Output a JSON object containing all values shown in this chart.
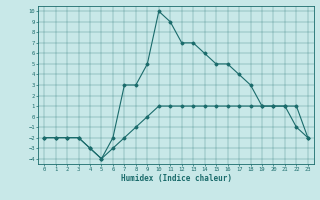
{
  "xlabel": "Humidex (Indice chaleur)",
  "ylabel": "",
  "background_color": "#c8e8e8",
  "line_color": "#1a6b6b",
  "xlim": [
    -0.5,
    23.5
  ],
  "ylim": [
    -4.5,
    10.5
  ],
  "xticks": [
    0,
    1,
    2,
    3,
    4,
    5,
    6,
    7,
    8,
    9,
    10,
    11,
    12,
    13,
    14,
    15,
    16,
    17,
    18,
    19,
    20,
    21,
    22,
    23
  ],
  "yticks": [
    -4,
    -3,
    -2,
    -1,
    0,
    1,
    2,
    3,
    4,
    5,
    6,
    7,
    8,
    9,
    10
  ],
  "series1_x": [
    0,
    1,
    2,
    3,
    4,
    5,
    6,
    7,
    8,
    9,
    10,
    11,
    12,
    13,
    14,
    15,
    16,
    17,
    18,
    19,
    20,
    21,
    22,
    23
  ],
  "series1_y": [
    -2,
    -2,
    -2,
    -2,
    -3,
    -4,
    -3,
    -2,
    -1,
    0,
    1,
    1,
    1,
    1,
    1,
    1,
    1,
    1,
    1,
    1,
    1,
    1,
    1,
    -2
  ],
  "series2_x": [
    0,
    1,
    2,
    3,
    4,
    5,
    6,
    7,
    8,
    9,
    10,
    11,
    12,
    13,
    14,
    15,
    16,
    17,
    18,
    19,
    20,
    21,
    22,
    23
  ],
  "series2_y": [
    -2,
    -2,
    -2,
    -2,
    -3,
    -4,
    -2,
    3,
    3,
    5,
    10,
    9,
    7,
    7,
    6,
    5,
    5,
    4,
    3,
    1,
    1,
    1,
    -1,
    -2
  ]
}
